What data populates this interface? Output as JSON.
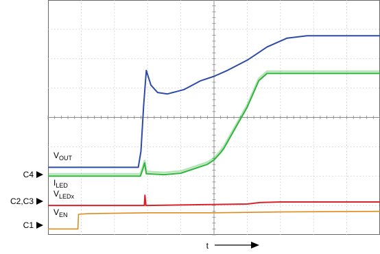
{
  "chart_data": {
    "type": "line",
    "title": "",
    "xlabel": "t",
    "ylabel": "",
    "grid": true,
    "divisions": {
      "x": 10,
      "y": 8
    },
    "x_range": [
      0,
      10
    ],
    "y_range": [
      0,
      8
    ],
    "series": [
      {
        "name": "VOUT",
        "label_main": "V",
        "label_sub": "OUT",
        "channel": "C4",
        "color": "#2c4aa8",
        "x": [
          0,
          2.72,
          2.8,
          2.88,
          2.96,
          3.1,
          3.3,
          3.6,
          4.1,
          4.6,
          5.0,
          5.4,
          6.0,
          6.6,
          7.2,
          7.8,
          8.3,
          8.8,
          9.2,
          9.6,
          10
        ],
        "y": [
          2.3,
          2.3,
          2.85,
          4.4,
          5.6,
          5.1,
          4.85,
          4.8,
          4.95,
          5.25,
          5.4,
          5.6,
          5.95,
          6.4,
          6.7,
          6.78,
          6.78,
          6.78,
          6.78,
          6.78,
          6.78
        ]
      },
      {
        "name": "ILED",
        "label_main": "I",
        "label_sub": "LED",
        "channel": "",
        "color": "#30b43c",
        "x": [
          0,
          2.78,
          2.86,
          2.91,
          2.96,
          3.5,
          4.0,
          4.4,
          4.8,
          5.0,
          5.2,
          5.3,
          5.6,
          6.0,
          6.35,
          6.6,
          7.0,
          8.0,
          9.0,
          10
        ],
        "y": [
          2.0,
          2.0,
          2.25,
          2.45,
          2.08,
          2.05,
          2.1,
          2.25,
          2.4,
          2.55,
          2.8,
          2.95,
          3.55,
          4.35,
          5.25,
          5.5,
          5.5,
          5.5,
          5.5,
          5.5
        ]
      },
      {
        "name": "VLEDx",
        "label_main": "V",
        "label_sub": "LEDx",
        "channel": "C2,C3",
        "color": "#d8222a",
        "x": [
          0,
          2.9,
          2.92,
          2.95,
          3.0,
          6.0,
          6.4,
          7.0,
          8.0,
          9.0,
          10
        ],
        "y": [
          1.0,
          1.0,
          1.35,
          1.0,
          1.0,
          1.05,
          1.1,
          1.12,
          1.12,
          1.12,
          1.12
        ]
      },
      {
        "name": "VEN",
        "label_main": "V",
        "label_sub": "EN",
        "channel": "C1",
        "color": "#e08a1e",
        "x": [
          0,
          0.9,
          0.92,
          1.2,
          3.0,
          5.0,
          7.0,
          10
        ],
        "y": [
          0.2,
          0.2,
          0.7,
          0.72,
          0.75,
          0.75,
          0.78,
          0.8
        ]
      }
    ]
  }
}
